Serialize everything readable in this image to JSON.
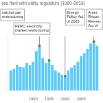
{
  "chart_data": {
    "type": "bar",
    "title": "ses filed with utility regulators (1980-2018)",
    "x": [
      1983,
      1984,
      1985,
      1986,
      1987,
      1988,
      1989,
      1990,
      1991,
      1992,
      1993,
      1994,
      1995,
      1996,
      1997,
      1998,
      1999,
      2000,
      2001,
      2002,
      2003,
      2004,
      2005,
      2006,
      2007,
      2008,
      2009,
      2010
    ],
    "values": [
      28,
      30,
      35,
      33,
      32,
      38,
      35,
      40,
      55,
      62,
      45,
      38,
      42,
      35,
      28,
      25,
      22,
      20,
      28,
      32,
      35,
      40,
      48,
      52,
      58,
      65,
      68,
      62
    ],
    "color": "#5bc8f5",
    "xlim": [
      1982,
      2011
    ],
    "ylim": [
      0,
      75
    ],
    "xticks": [
      1990,
      1995,
      2000,
      2005
    ],
    "grid": false,
    "tick_labels": "x",
    "annotations": [
      {
        "text": "natural gas\nrestructuring",
        "x": 1992
      },
      {
        "text": "FERC electricity\nmarket restructuring",
        "x": 1995
      },
      {
        "text": "Energy\nPolicy Act\nof 2005",
        "x": 2000
      },
      {
        "text": "Amer.\nRecov.\nReinve.\nAct of",
        "x": 2009
      }
    ]
  }
}
